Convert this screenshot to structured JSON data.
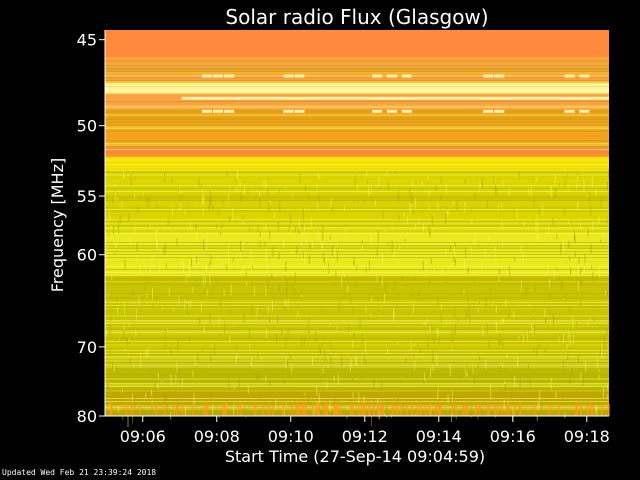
{
  "chart_data": {
    "type": "heatmap",
    "title": "Solar radio Flux (Glasgow)",
    "ylabel": "Frequency [MHz]",
    "xlabel": "Start Time (27-Sep-14 09:04:59)",
    "y_ticks": [
      45,
      50,
      55,
      60,
      70,
      80
    ],
    "ylim": [
      44.5,
      80
    ],
    "y_scale": "reciprocal",
    "x_ticks": [
      "09:06",
      "09:08",
      "09:10",
      "09:12",
      "09:14",
      "09:16",
      "09:18"
    ],
    "x_tick_minutes": [
      6,
      8,
      10,
      12,
      14,
      16,
      18
    ],
    "xlim_minutes": [
      4.98,
      18.6
    ],
    "bands": [
      {
        "from": 44.5,
        "to": 46.0,
        "color": "#ff8a3d"
      },
      {
        "from": 46.0,
        "to": 47.4,
        "color": "#ff9f45"
      },
      {
        "from": 47.4,
        "to": 48.0,
        "color": "#fff3b0"
      },
      {
        "from": 48.0,
        "to": 49.0,
        "color": "#ff9f45"
      },
      {
        "from": 49.0,
        "to": 51.4,
        "color": "#f6a020"
      },
      {
        "from": 51.4,
        "to": 52.1,
        "color": "#ff8a3d"
      },
      {
        "from": 52.1,
        "to": 53.0,
        "color": "#f2e200"
      },
      {
        "from": 53.0,
        "to": 58.0,
        "color": "#d9d400"
      },
      {
        "from": 58.0,
        "to": 62.0,
        "color": "#eaea20"
      },
      {
        "from": 62.0,
        "to": 72.0,
        "color": "#c8c400"
      },
      {
        "from": 72.0,
        "to": 76.0,
        "color": "#bdb800"
      },
      {
        "from": 76.0,
        "to": 80.0,
        "color": "#c0a800"
      }
    ],
    "colors": {
      "background": "#000000",
      "axis": "#ffffff",
      "hot": "#ff8a3d",
      "warm": "#f6a020",
      "yellow": "#dcd800",
      "pale": "#fff3b0"
    }
  },
  "footer": "Updated Wed Feb 21 23:39:24 2018"
}
